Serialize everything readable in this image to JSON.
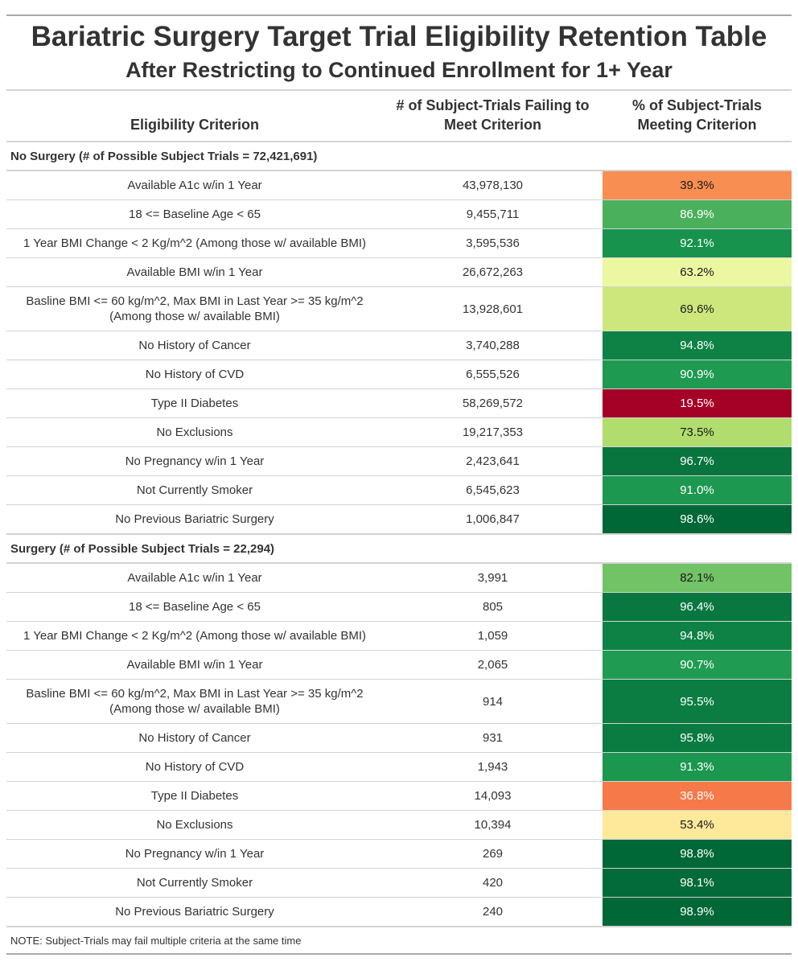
{
  "title": "Bariatric Surgery Target Trial Eligibility Retention Table",
  "subtitle": "After Restricting to Continued Enrollment for 1+ Year",
  "columns": {
    "criterion": "Eligibility Criterion",
    "failing_line1": "# of Subject-Trials Failing to",
    "failing_line2": "Meet Criterion",
    "meeting_line1": "% of Subject-Trials",
    "meeting_line2": "Meeting Criterion"
  },
  "groups": [
    {
      "label": "No Surgery (# of Possible Subject Trials = 72,421,691)",
      "rows": [
        {
          "criterion": "Available A1c w/in 1 Year",
          "failing": "43,978,130",
          "pct": "39.3%",
          "pct_value": 39.3,
          "bg": "#f88e52",
          "fg": "#1a1a1a"
        },
        {
          "criterion": "18 <= Baseline Age < 65",
          "failing": "9,455,711",
          "pct": "86.9%",
          "pct_value": 86.9,
          "bg": "#4bb05c",
          "fg": "#ffffff"
        },
        {
          "criterion": "1 Year BMI Change < 2 Kg/m^2 (Among those w/ available BMI)",
          "failing": "3,595,536",
          "pct": "92.1%",
          "pct_value": 92.1,
          "bg": "#17934d",
          "fg": "#ffffff"
        },
        {
          "criterion": "Available BMI w/in 1 Year",
          "failing": "26,672,263",
          "pct": "63.2%",
          "pct_value": 63.2,
          "bg": "#ecf7a1",
          "fg": "#1a1a1a"
        },
        {
          "criterion": "Basline BMI <= 60 kg/m^2, Max BMI in Last Year >= 35 kg/m^2",
          "criterion2": "(Among those w/ available BMI)",
          "failing": "13,928,601",
          "pct": "69.6%",
          "pct_value": 69.6,
          "bg": "#cde77d",
          "fg": "#1a1a1a"
        },
        {
          "criterion": "No History of Cancer",
          "failing": "3,740,288",
          "pct": "94.8%",
          "pct_value": 94.8,
          "bg": "#0e8245",
          "fg": "#ffffff"
        },
        {
          "criterion": "No History of CVD",
          "failing": "6,555,526",
          "pct": "90.9%",
          "pct_value": 90.9,
          "bg": "#1e9a51",
          "fg": "#ffffff"
        },
        {
          "criterion": "Type II Diabetes",
          "failing": "58,269,572",
          "pct": "19.5%",
          "pct_value": 19.5,
          "bg": "#a50026",
          "fg": "#ffffff"
        },
        {
          "criterion": "No Exclusions",
          "failing": "19,217,353",
          "pct": "73.5%",
          "pct_value": 73.5,
          "bg": "#b1dc6e",
          "fg": "#1a1a1a"
        },
        {
          "criterion": "No Pregnancy w/in 1 Year",
          "failing": "2,423,641",
          "pct": "96.7%",
          "pct_value": 96.7,
          "bg": "#08753f",
          "fg": "#ffffff"
        },
        {
          "criterion": "Not Currently Smoker",
          "failing": "6,545,623",
          "pct": "91.0%",
          "pct_value": 91.0,
          "bg": "#1d9850",
          "fg": "#ffffff"
        },
        {
          "criterion": "No Previous Bariatric Surgery",
          "failing": "1,006,847",
          "pct": "98.6%",
          "pct_value": 98.6,
          "bg": "#006837",
          "fg": "#ffffff"
        }
      ]
    },
    {
      "label": "Surgery (# of Possible Subject Trials = 22,294)",
      "rows": [
        {
          "criterion": "Available A1c w/in 1 Year",
          "failing": "3,991",
          "pct": "82.1%",
          "pct_value": 82.1,
          "bg": "#72c266",
          "fg": "#1a1a1a"
        },
        {
          "criterion": "18 <= Baseline Age < 65",
          "failing": "805",
          "pct": "96.4%",
          "pct_value": 96.4,
          "bg": "#097740",
          "fg": "#ffffff"
        },
        {
          "criterion": "1 Year BMI Change < 2 Kg/m^2 (Among those w/ available BMI)",
          "failing": "1,059",
          "pct": "94.8%",
          "pct_value": 94.8,
          "bg": "#0e8245",
          "fg": "#ffffff"
        },
        {
          "criterion": "Available BMI w/in 1 Year",
          "failing": "2,065",
          "pct": "90.7%",
          "pct_value": 90.7,
          "bg": "#209c52",
          "fg": "#ffffff"
        },
        {
          "criterion": "Basline BMI <= 60 kg/m^2, Max BMI in Last Year >= 35 kg/m^2",
          "criterion2": "(Among those w/ available BMI)",
          "failing": "914",
          "pct": "95.5%",
          "pct_value": 95.5,
          "bg": "#0b7d42",
          "fg": "#ffffff"
        },
        {
          "criterion": "No History of Cancer",
          "failing": "931",
          "pct": "95.8%",
          "pct_value": 95.8,
          "bg": "#0a7b41",
          "fg": "#ffffff"
        },
        {
          "criterion": "No History of CVD",
          "failing": "1,943",
          "pct": "91.3%",
          "pct_value": 91.3,
          "bg": "#1b974f",
          "fg": "#ffffff"
        },
        {
          "criterion": "Type II Diabetes",
          "failing": "14,093",
          "pct": "36.8%",
          "pct_value": 36.8,
          "bg": "#f67a49",
          "fg": "#ffffff"
        },
        {
          "criterion": "No Exclusions",
          "failing": "10,394",
          "pct": "53.4%",
          "pct_value": 53.4,
          "bg": "#fee89a",
          "fg": "#1a1a1a"
        },
        {
          "criterion": "No Pregnancy w/in 1 Year",
          "failing": "269",
          "pct": "98.8%",
          "pct_value": 98.8,
          "bg": "#006837",
          "fg": "#ffffff"
        },
        {
          "criterion": "Not Currently Smoker",
          "failing": "420",
          "pct": "98.1%",
          "pct_value": 98.1,
          "bg": "#036b39",
          "fg": "#ffffff"
        },
        {
          "criterion": "No Previous Bariatric Surgery",
          "failing": "240",
          "pct": "98.9%",
          "pct_value": 98.9,
          "bg": "#006837",
          "fg": "#ffffff"
        }
      ]
    }
  ],
  "note": "NOTE: Subject-Trials may fail multiple criteria at the same time"
}
